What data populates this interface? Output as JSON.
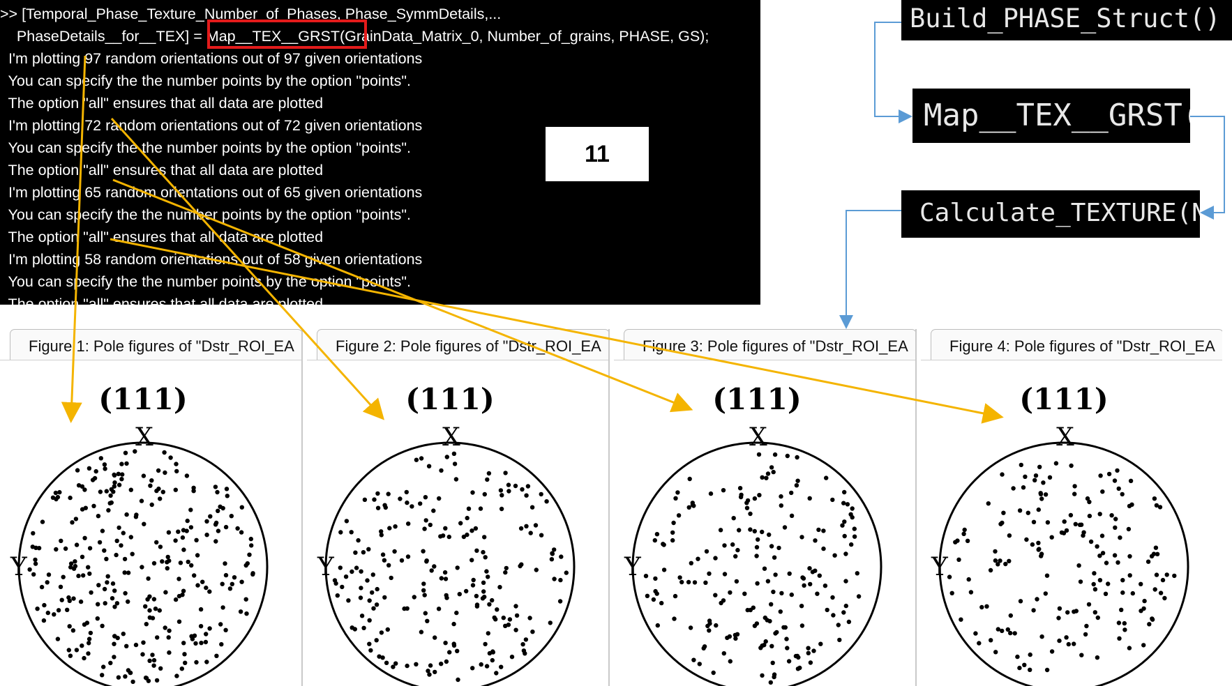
{
  "console": {
    "lines": [
      ">> [Temporal_Phase_Texture_Number_of_Phases, Phase_SymmDetails,...",
      "    PhaseDetails__for__TEX] = Map__TEX__GRST(GrainData_Matrix_0, Number_of_grains, PHASE, GS);",
      "  I'm plotting 97 random orientations out of 97 given orientations",
      "  You can specify the the number points by the option \"points\".",
      "  The option \"all\" ensures that all data are plotted",
      "  I'm plotting 72 random orientations out of 72 given orientations",
      "  You can specify the the number points by the option \"points\".",
      "  The option \"all\" ensures that all data are plotted",
      "  I'm plotting 65 random orientations out of 65 given orientations",
      "  You can specify the the number points by the option \"points\".",
      "  The option \"all\" ensures that all data are plotted",
      "  I'm plotting 58 random orientations out of 58 given orientations",
      "  You can specify the the number points by the option \"points\".",
      "  The option \"all\" ensures that all data are plotted"
    ]
  },
  "step_badge": "11",
  "code_snippets": {
    "build": "Build_PHASE_Struct()",
    "map": "Map__TEX__GRST(",
    "calc": "Calculate_TEXTURE(N"
  },
  "figures": [
    {
      "tab_label": "Figure 1: Pole figures of \"Dstr_ROI_EA",
      "title": "(111)",
      "x_label": "X",
      "y_label": "Y",
      "orientation_count": 97
    },
    {
      "tab_label": "Figure 2: Pole figures of \"Dstr_ROI_EA",
      "title": "(111)",
      "x_label": "X",
      "y_label": "Y",
      "orientation_count": 72
    },
    {
      "tab_label": "Figure 3: Pole figures of \"Dstr_ROI_EA",
      "title": "(111)",
      "x_label": "X",
      "y_label": "Y",
      "orientation_count": 65
    },
    {
      "tab_label": "Figure 4: Pole figures of \"Dstr_ROI_EA",
      "title": "(111)",
      "x_label": "X",
      "y_label": "Y",
      "orientation_count": 58
    }
  ],
  "colors": {
    "console_bg": "#000000",
    "console_text": "#ffffff",
    "highlight_box": "#e31b1b",
    "annotation_arrow": "#f4b400",
    "flow_arrow": "#5b9bd5"
  }
}
